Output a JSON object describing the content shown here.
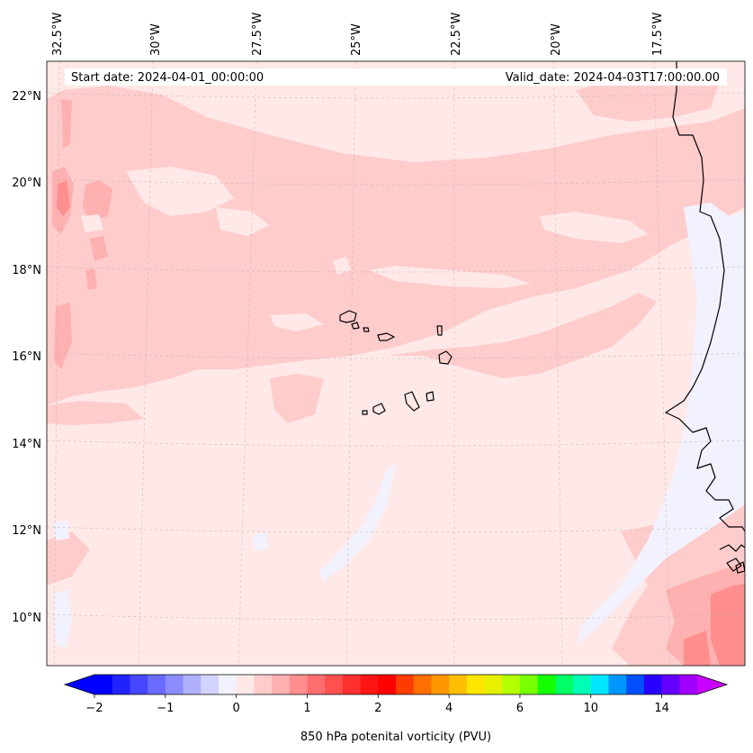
{
  "map": {
    "start_date": "Start date: 2024-04-01_00:00:00",
    "valid_date": "Valid_date: 2024-04-03T17:00:00.00",
    "lon_labels": [
      "32.5°W",
      "30°W",
      "27.5°W",
      "25°W",
      "22.5°W",
      "20°W",
      "17.5°W"
    ],
    "lat_labels": [
      "22°N",
      "20°N",
      "18°N",
      "16°N",
      "14°N",
      "12°N",
      "10°N"
    ],
    "extent": {
      "lon_min": -33.0,
      "lon_max": -15.6,
      "lat_min": 8.9,
      "lat_max": 22.8
    }
  },
  "colorbar": {
    "title": "850 hPa potenital vorticity (PVU)",
    "tick_labels": [
      "−2",
      "−1",
      "0",
      "1",
      "2",
      "4",
      "6",
      "10",
      "14"
    ],
    "tick_level_index": [
      0,
      4,
      8,
      12,
      16,
      20,
      24,
      28,
      32
    ],
    "colors": [
      "#0000ff",
      "#2222ff",
      "#4646ff",
      "#6a6aff",
      "#8c8cff",
      "#b0b0ff",
      "#d2d2ff",
      "#f2f2ff",
      "#ffe8e8",
      "#ffcccc",
      "#ffb0b0",
      "#ff8e8e",
      "#ff6e6e",
      "#ff5050",
      "#ff3030",
      "#ff1414",
      "#ff0000",
      "#ff3c00",
      "#ff6e00",
      "#ff9600",
      "#ffbe00",
      "#ffe600",
      "#e6f000",
      "#b4ff00",
      "#78ff00",
      "#14ff00",
      "#00ff64",
      "#00ffb4",
      "#00e6ff",
      "#0096ff",
      "#0050ff",
      "#2800ff",
      "#6400ff",
      "#a000ff"
    ],
    "extend_low_color": "#0000ff",
    "extend_high_color": "#c800ff"
  },
  "colors": {
    "background_field": "#ffe8e8",
    "field_light": "#ffcccc",
    "field_medium": "#ffb0b0",
    "field_strong": "#ff8e8e",
    "field_negative": "#f2f2ff",
    "coastline": "#000000"
  }
}
